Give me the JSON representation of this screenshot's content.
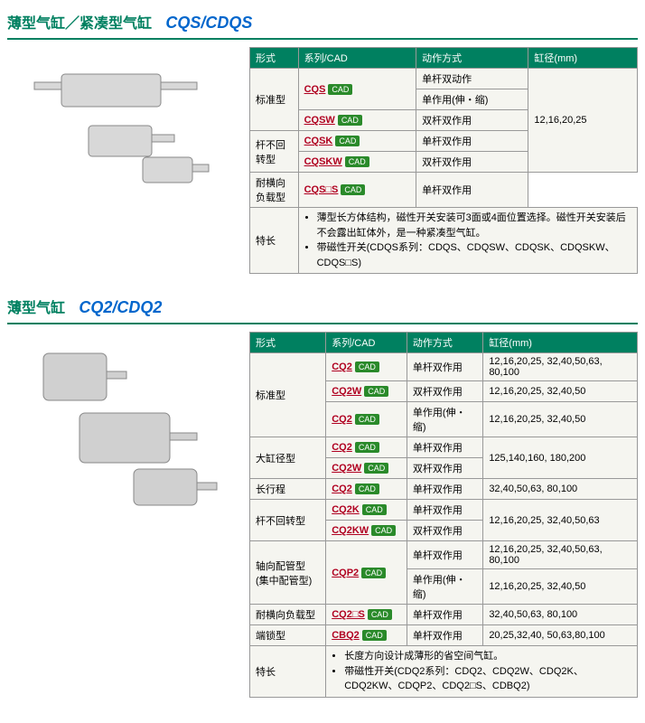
{
  "sections": [
    {
      "title_cn": "薄型气缸／紧凑型气缸",
      "title_en": "CQS/CDQS",
      "headers": [
        "形式",
        "系列/CAD",
        "动作方式",
        "缸径(mm)"
      ],
      "img_style": "compact",
      "rows": [
        {
          "form": "标准型",
          "form_rowspan": 3,
          "series": "CQS",
          "cad": true,
          "series_rowspan": 2,
          "action": "单杆双动作",
          "bore": "12,16,20,25",
          "bore_rowspan": 5
        },
        {
          "action": "单作用(伸・缩)"
        },
        {
          "series": "CQSW",
          "cad": true,
          "action": "双杆双作用"
        },
        {
          "form": "杆不回转型",
          "form_rowspan": 2,
          "series": "CQSK",
          "cad": true,
          "action": "单杆双作用"
        },
        {
          "series": "CQSKW",
          "cad": true,
          "action": "双杆双作用"
        },
        {
          "form": "耐横向负载型",
          "series": "CQS□S",
          "cad": true,
          "action": "单杆双作用"
        }
      ],
      "features_label": "特长",
      "features": [
        "薄型长方体结构，磁性开关安装可3面或4面位置选择。磁性开关安装后不会露出缸体外，是一种紧凑型气缸。",
        "带磁性开关(CDQS系列：CDQS、CDQSW、CDQSK、CDQSKW、CDQS□S)"
      ]
    },
    {
      "title_cn": "薄型气缸",
      "title_en": "CQ2/CDQ2",
      "headers": [
        "形式",
        "系列/CAD",
        "动作方式",
        "缸径(mm)"
      ],
      "img_style": "thin",
      "rows": [
        {
          "form": "标准型",
          "form_rowspan": 3,
          "series": "CQ2",
          "cad": true,
          "action": "单杆双作用",
          "bore": "12,16,20,25, 32,40,50,63, 80,100",
          "bore_rowspan": 1
        },
        {
          "series": "CQ2W",
          "cad": true,
          "action": "双杆双作用",
          "bore": "12,16,20,25, 32,40,50"
        },
        {
          "series": "CQ2",
          "cad": true,
          "action": "单作用(伸・缩)",
          "bore": "12,16,20,25, 32,40,50"
        },
        {
          "form": "大缸径型",
          "form_rowspan": 2,
          "series": "CQ2",
          "cad": true,
          "action": "单杆双作用",
          "bore": "125,140,160, 180,200",
          "bore_rowspan": 2
        },
        {
          "series": "CQ2W",
          "cad": true,
          "action": "双杆双作用"
        },
        {
          "form": "长行程",
          "series": "CQ2",
          "cad": true,
          "action": "单杆双作用",
          "bore": "32,40,50,63, 80,100"
        },
        {
          "form": "杆不回转型",
          "form_rowspan": 2,
          "series": "CQ2K",
          "cad": true,
          "action": "单杆双作用",
          "bore": "12,16,20,25, 32,40,50,63",
          "bore_rowspan": 2
        },
        {
          "series": "CQ2KW",
          "cad": true,
          "action": "双杆双作用"
        },
        {
          "form": "轴向配管型 (集中配管型)",
          "form_rowspan": 2,
          "series": "CQP2",
          "cad": true,
          "series_rowspan": 2,
          "action": "单杆双作用",
          "bore": "12,16,20,25, 32,40,50,63, 80,100"
        },
        {
          "action": "单作用(伸・缩)",
          "bore": "12,16,20,25, 32,40,50"
        },
        {
          "form": "耐横向负载型",
          "series": "CQ2□S",
          "cad": true,
          "action": "单杆双作用",
          "bore": "32,40,50,63, 80,100"
        },
        {
          "form": "端锁型",
          "series": "CBQ2",
          "cad": true,
          "action": "单杆双作用",
          "bore": "20,25,32,40, 50,63,80,100"
        }
      ],
      "features_label": "特长",
      "features": [
        "长度方向设计成薄形的省空间气缸。",
        "带磁性开关(CDQ2系列：CDQ2、CDQ2W、CDQ2K、CDQ2KW、CDQP2、CDQ2□S、CDBQ2)"
      ]
    }
  ],
  "colors": {
    "green": "#008060",
    "link": "#b00020",
    "badge": "#2a8a2a",
    "blue": "#0066cc"
  },
  "cad_label": "CAD"
}
